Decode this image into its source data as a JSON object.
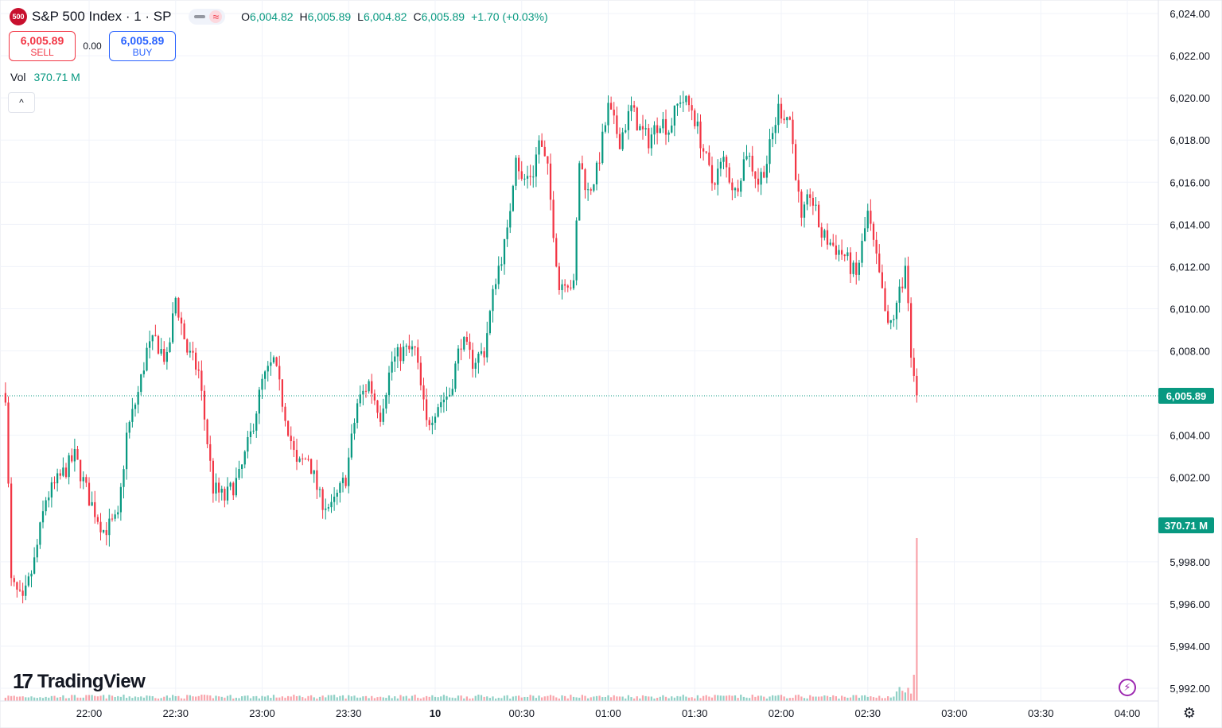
{
  "header": {
    "logo_text": "500",
    "title": "S&P 500 Index · 1 · SP",
    "pill_icon": "≈",
    "ohlc": [
      {
        "k": "O",
        "v": "6,004.82"
      },
      {
        "k": "H",
        "v": "6,005.89"
      },
      {
        "k": "L",
        "v": "6,004.82"
      },
      {
        "k": "C",
        "v": "6,005.89"
      },
      {
        "k": "",
        "v": "+1.70 (+0.03%)"
      }
    ]
  },
  "trade": {
    "sell_price": "6,005.89",
    "sell_label": "SELL",
    "spread": "0.00",
    "buy_price": "6,005.89",
    "buy_label": "BUY"
  },
  "volume": {
    "label": "Vol",
    "value": "370.71 M"
  },
  "collapse_icon": "^",
  "watermark": {
    "mark": "17",
    "text": "TradingView"
  },
  "last_price_tag": "6,005.89",
  "volume_tag": "370.71 M",
  "colors": {
    "up": "#089981",
    "down": "#f23645",
    "grid": "#f0f3fa",
    "axis_text": "#131722"
  },
  "chart_data": {
    "type": "candlestick",
    "title": "S&P 500 Index · 1 · SP",
    "interval": "1 minute",
    "y_ticks": [
      6024,
      6022,
      6020,
      6018,
      6016,
      6014,
      6012,
      6010,
      6008,
      6004,
      6002,
      5998,
      5996,
      5994,
      5992
    ],
    "y_tick_labels": [
      "6,024.00",
      "6,022.00",
      "6,020.00",
      "6,018.00",
      "6,016.00",
      "6,014.00",
      "6,012.00",
      "6,010.00",
      "6,008.00",
      "6,004.00",
      "6,002.00",
      "5,998.00",
      "5,996.00",
      "5,994.00",
      "5,992.00"
    ],
    "ylim": [
      5991.5,
      6024.5
    ],
    "x_ticks": [
      "22:00",
      "22:30",
      "23:00",
      "23:30",
      "10",
      "00:30",
      "01:00",
      "01:30",
      "02:00",
      "02:30",
      "03:00",
      "03:30",
      "04:00"
    ],
    "x_tick_minutes": [
      0,
      30,
      60,
      90,
      120,
      150,
      180,
      210,
      240,
      270,
      300,
      330,
      360
    ],
    "start_minute": -29,
    "end_minute": 362,
    "grid": true,
    "last_price": 6005.89,
    "last_volume": 370.71,
    "volume_unit": "M",
    "anchors": [
      [
        -29,
        6006.0
      ],
      [
        -27,
        5997.0
      ],
      [
        -23,
        5996.0
      ],
      [
        -19,
        5998.0
      ],
      [
        -15,
        6001.0
      ],
      [
        -10,
        6002.0
      ],
      [
        -5,
        6003.0
      ],
      [
        0,
        6001.0
      ],
      [
        5,
        5999.5
      ],
      [
        10,
        6000.0
      ],
      [
        13,
        6004.0
      ],
      [
        17,
        6006.0
      ],
      [
        20,
        6008.0
      ],
      [
        23,
        6008.5
      ],
      [
        27,
        6007.5
      ],
      [
        30,
        6010.5
      ],
      [
        34,
        6008.0
      ],
      [
        38,
        6007.0
      ],
      [
        43,
        6001.5
      ],
      [
        47,
        6001.0
      ],
      [
        52,
        6002.0
      ],
      [
        56,
        6004.0
      ],
      [
        60,
        6006.5
      ],
      [
        64,
        6007.5
      ],
      [
        68,
        6005.0
      ],
      [
        72,
        6002.5
      ],
      [
        76,
        6003.0
      ],
      [
        80,
        6001.0
      ],
      [
        84,
        6000.5
      ],
      [
        89,
        6002.0
      ],
      [
        93,
        6005.5
      ],
      [
        97,
        6006.5
      ],
      [
        101,
        6005.0
      ],
      [
        105,
        6007.5
      ],
      [
        109,
        6008.0
      ],
      [
        113,
        6008.0
      ],
      [
        117,
        6004.5
      ],
      [
        121,
        6005.5
      ],
      [
        125,
        6006.0
      ],
      [
        129,
        6008.5
      ],
      [
        133,
        6007.5
      ],
      [
        137,
        6008.0
      ],
      [
        141,
        6011.5
      ],
      [
        145,
        6013.5
      ],
      [
        148,
        6017.5
      ],
      [
        150,
        6016.0
      ],
      [
        154,
        6016.5
      ],
      [
        156,
        6018.0
      ],
      [
        159,
        6016.5
      ],
      [
        163,
        6011.0
      ],
      [
        165,
        6011.5
      ],
      [
        168,
        6011.0
      ],
      [
        170,
        6017.0
      ],
      [
        173,
        6015.5
      ],
      [
        176,
        6016.5
      ],
      [
        180,
        6019.5
      ],
      [
        184,
        6018.0
      ],
      [
        188,
        6019.5
      ],
      [
        191,
        6018.5
      ],
      [
        194,
        6018.0
      ],
      [
        198,
        6019.0
      ],
      [
        201,
        6018.5
      ],
      [
        205,
        6020.0
      ],
      [
        209,
        6019.5
      ],
      [
        212,
        6018.0
      ],
      [
        216,
        6016.0
      ],
      [
        220,
        6017.0
      ],
      [
        224,
        6015.5
      ],
      [
        228,
        6017.5
      ],
      [
        232,
        6016.0
      ],
      [
        235,
        6017.0
      ],
      [
        239,
        6019.5
      ],
      [
        243,
        6019.0
      ],
      [
        247,
        6014.0
      ],
      [
        250,
        6015.5
      ],
      [
        254,
        6013.5
      ],
      [
        258,
        6013.0
      ],
      [
        262,
        6012.5
      ],
      [
        266,
        6011.5
      ],
      [
        270,
        6014.5
      ],
      [
        274,
        6011.5
      ],
      [
        277,
        6009.0
      ],
      [
        280,
        6010.0
      ],
      [
        283,
        6012.0
      ],
      [
        285,
        6008.0
      ],
      [
        287,
        6005.89
      ]
    ]
  }
}
